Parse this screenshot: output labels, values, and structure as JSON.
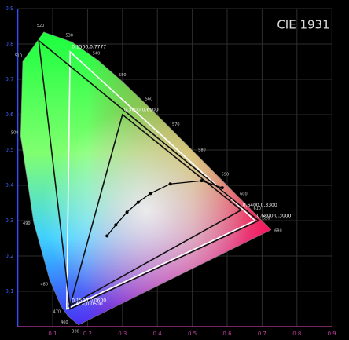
{
  "chart_data": {
    "type": "cie",
    "title": "CIE 1931",
    "xlim": [
      0,
      0.9
    ],
    "ylim": [
      0,
      0.9
    ],
    "xticks": [
      0.1,
      0.2,
      0.3,
      0.4,
      0.5,
      0.6,
      0.7,
      0.8,
      0.9
    ],
    "yticks": [
      0.1,
      0.2,
      0.3,
      0.4,
      0.5,
      0.6,
      0.7,
      0.8,
      0.9
    ],
    "grid": true,
    "locus": {
      "wavelengths": [
        "380",
        "460",
        "470",
        "480",
        "490",
        "500",
        "510",
        "520",
        "530",
        "540",
        "550",
        "560",
        "570",
        "580",
        "590",
        "600",
        "610",
        "620",
        "680"
      ],
      "x": [
        0.1741,
        0.144,
        0.1241,
        0.0913,
        0.0454,
        0.0082,
        0.0139,
        0.0743,
        0.1547,
        0.2296,
        0.3016,
        0.3731,
        0.4441,
        0.5125,
        0.5752,
        0.627,
        0.6658,
        0.6915,
        0.726
      ],
      "y": [
        0.005,
        0.0297,
        0.0578,
        0.1327,
        0.295,
        0.5384,
        0.7502,
        0.8338,
        0.8059,
        0.7543,
        0.6923,
        0.6245,
        0.5547,
        0.4866,
        0.4242,
        0.3725,
        0.334,
        0.3083,
        0.274
      ]
    },
    "gamuts": [
      {
        "color": "#ffffff",
        "x": [
          0.15,
          0.68,
          0.14
        ],
        "y": [
          0.7777,
          0.3,
          0.05
        ],
        "value_labels": [
          "0.1500,0.7777",
          "0.6800,0.3000",
          "0.1400,0.0500"
        ]
      },
      {
        "color": "#111111",
        "x": [
          0.06,
          0.69,
          0.15
        ],
        "y": [
          0.81,
          0.3,
          0.05
        ]
      },
      {
        "color": "#111111",
        "x": [
          0.3,
          0.64,
          0.15
        ],
        "y": [
          0.6,
          0.33,
          0.06
        ],
        "value_labels": [
          "0.3000,0.6000",
          "0.6400,0.3300",
          "0.1500,0.0600"
        ]
      }
    ],
    "planckian": {
      "x": [
        0.586,
        0.527,
        0.437,
        0.38,
        0.345,
        0.313,
        0.281,
        0.256
      ],
      "y": [
        0.393,
        0.413,
        0.404,
        0.377,
        0.352,
        0.324,
        0.288,
        0.257
      ]
    }
  }
}
